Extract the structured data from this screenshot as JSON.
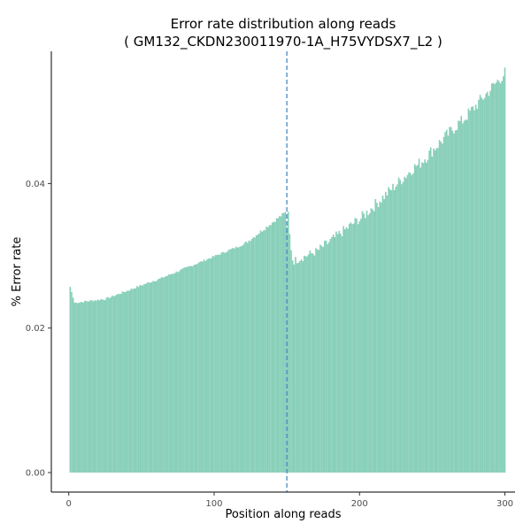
{
  "chart_data": {
    "type": "bar",
    "title": "Error rate distribution along reads",
    "subtitle": "( GM132_CKDN230011970-1A_H75VYDSX7_L2 )",
    "xlabel": "Position along reads",
    "ylabel": "% Error rate",
    "xlim": [
      -12,
      307
    ],
    "ylim": [
      -0.0027,
      0.0583
    ],
    "x_ticks": [
      0,
      100,
      200,
      300
    ],
    "y_ticks": [
      0.0,
      0.02,
      0.04
    ],
    "x_tick_labels": [
      "0",
      "100",
      "200",
      "300"
    ],
    "y_tick_labels": [
      "0.00",
      "0.02",
      "0.04"
    ],
    "grid": false,
    "bar_color": "#66c2a5",
    "bar_opacity": 0.78,
    "reference_line": {
      "x": 150,
      "color": "#3a7fc1",
      "style": "dashed"
    },
    "bars": [
      {
        "from": 1,
        "to": 2,
        "value": 0.0257
      },
      {
        "from": 2,
        "to": 3,
        "value": 0.025
      },
      {
        "from": 3,
        "to": 4,
        "value": 0.0242
      },
      {
        "from": 4,
        "to": 25,
        "value_start": 0.0235,
        "value_end": 0.024,
        "noise": 0.00015
      },
      {
        "from": 25,
        "to": 60,
        "value_start": 0.024,
        "value_end": 0.0266,
        "noise": 0.00015
      },
      {
        "from": 60,
        "to": 120,
        "value_start": 0.0266,
        "value_end": 0.0315,
        "noise": 0.00015
      },
      {
        "from": 120,
        "to": 150,
        "value_start": 0.0315,
        "value_end": 0.036,
        "noise": 0.00025
      },
      {
        "from": 150,
        "to": 151,
        "value": 0.034
      },
      {
        "from": 151,
        "to": 152,
        "value": 0.0361
      },
      {
        "from": 152,
        "to": 153,
        "value": 0.033
      },
      {
        "from": 153,
        "to": 155,
        "value_start": 0.031,
        "value_end": 0.0295,
        "noise": 0.0005
      },
      {
        "from": 155,
        "to": 170,
        "value_start": 0.0293,
        "value_end": 0.0305,
        "noise": 0.0006
      },
      {
        "from": 170,
        "to": 200,
        "value_start": 0.0305,
        "value_end": 0.035,
        "noise": 0.0007
      },
      {
        "from": 200,
        "to": 240,
        "value_start": 0.035,
        "value_end": 0.0425,
        "noise": 0.0008
      },
      {
        "from": 240,
        "to": 270,
        "value_start": 0.0425,
        "value_end": 0.0485,
        "noise": 0.0009
      },
      {
        "from": 270,
        "to": 301,
        "value_start": 0.0485,
        "value_end": 0.0553,
        "noise": 0.0009
      }
    ]
  }
}
